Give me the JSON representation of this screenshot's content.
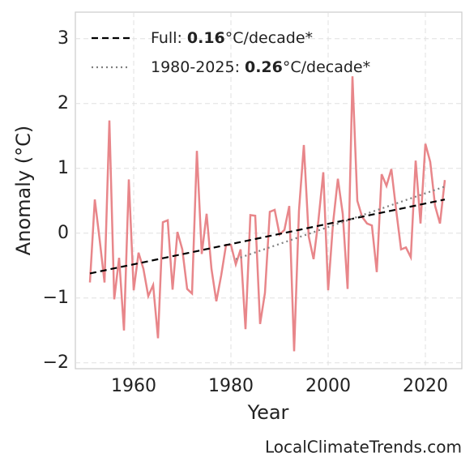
{
  "chart_data": {
    "type": "line",
    "x_label": "Year",
    "y_label": "Anomaly (°C)",
    "x": [
      1951,
      1952,
      1953,
      1954,
      1955,
      1956,
      1957,
      1958,
      1959,
      1960,
      1961,
      1962,
      1963,
      1964,
      1965,
      1966,
      1967,
      1968,
      1969,
      1970,
      1971,
      1972,
      1973,
      1974,
      1975,
      1976,
      1977,
      1978,
      1979,
      1980,
      1981,
      1982,
      1983,
      1984,
      1985,
      1986,
      1987,
      1988,
      1989,
      1990,
      1991,
      1992,
      1993,
      1994,
      1995,
      1996,
      1997,
      1998,
      1999,
      2000,
      2001,
      2002,
      2003,
      2004,
      2005,
      2006,
      2007,
      2008,
      2009,
      2010,
      2011,
      2012,
      2013,
      2014,
      2015,
      2016,
      2017,
      2018,
      2019,
      2020,
      2021,
      2022,
      2023,
      2024
    ],
    "values": [
      -0.76,
      0.52,
      -0.1,
      -0.76,
      1.74,
      -1.02,
      -0.38,
      -1.5,
      0.83,
      -0.88,
      -0.3,
      -0.55,
      -0.97,
      -0.8,
      -1.62,
      0.17,
      0.2,
      -0.87,
      0.02,
      -0.25,
      -0.86,
      -0.93,
      1.27,
      -0.32,
      0.3,
      -0.55,
      -1.05,
      -0.65,
      -0.18,
      -0.18,
      -0.48,
      -0.25,
      -1.48,
      0.28,
      0.27,
      -1.4,
      -0.92,
      0.33,
      0.36,
      -0.02,
      0.05,
      0.42,
      -1.82,
      0.35,
      1.36,
      -0.05,
      -0.4,
      0.2,
      0.94,
      -0.88,
      0.15,
      0.84,
      0.3,
      -0.86,
      2.42,
      0.5,
      0.25,
      0.15,
      0.12,
      -0.6,
      0.91,
      0.73,
      0.99,
      0.35,
      -0.25,
      -0.22,
      -0.37,
      1.12,
      0.15,
      1.38,
      1.1,
      0.42,
      0.15,
      0.82
    ],
    "color": "#e8868a",
    "trends": [
      {
        "name": "Full:",
        "rate": 0.16,
        "unit": "°C/decade*",
        "x": [
          1951,
          2024
        ],
        "values": [
          -0.62,
          0.52
        ],
        "color": "#000000",
        "dash": "dashed"
      },
      {
        "name": "1980-2025:",
        "rate": 0.26,
        "unit": "°C/decade*",
        "x": [
          1981,
          2024
        ],
        "values": [
          -0.4,
          0.72
        ],
        "color": "#808080",
        "dash": "dotted"
      }
    ],
    "xlim": [
      1948,
      2027.5
    ],
    "ylim": [
      -2.09,
      3.41
    ],
    "xticks": [
      1960,
      1980,
      2000,
      2020
    ],
    "yticks": [
      {
        "value": -2,
        "label": "−2"
      },
      {
        "value": -1,
        "label": "−1"
      },
      0,
      1,
      2,
      3
    ],
    "grid": true,
    "legend": "upper left",
    "attribution": "LocalClimateTrends.com"
  }
}
